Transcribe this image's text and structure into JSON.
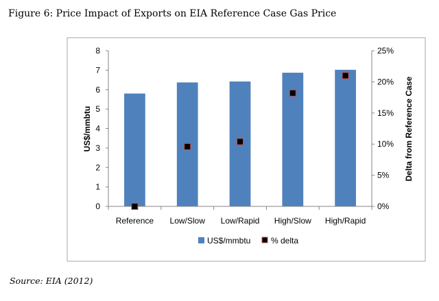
{
  "figure": {
    "title": "Figure 6: Price Impact of Exports on EIA Reference Case Gas Price",
    "source": "Source: EIA (2012)"
  },
  "chart_data": {
    "type": "bar",
    "categories": [
      "Reference",
      "Low/Slow",
      "Low/Rapid",
      "High/Slow",
      "High/Rapid"
    ],
    "series": [
      {
        "name": "US$/mmbtu",
        "type": "bar",
        "axis": "left",
        "color": "#4F81BD",
        "values": [
          5.8,
          6.37,
          6.42,
          6.87,
          7.02
        ]
      },
      {
        "name": "% delta",
        "type": "scatter",
        "axis": "right",
        "color": "#000000",
        "edge_color": "#C0504D",
        "values": [
          0,
          9.6,
          10.4,
          18.2,
          21.0
        ]
      }
    ],
    "ylabel": "US$/mmbtu",
    "y2label": "Delta from Reference Case",
    "ylim": [
      0,
      8
    ],
    "y2lim": [
      0,
      25
    ],
    "yticks": [
      "0",
      "1",
      "2",
      "3",
      "4",
      "5",
      "6",
      "7",
      "8"
    ],
    "y2ticks": [
      "0%",
      "5%",
      "10%",
      "15%",
      "20%",
      "25%"
    ],
    "grid": false,
    "legend": "bottom"
  }
}
